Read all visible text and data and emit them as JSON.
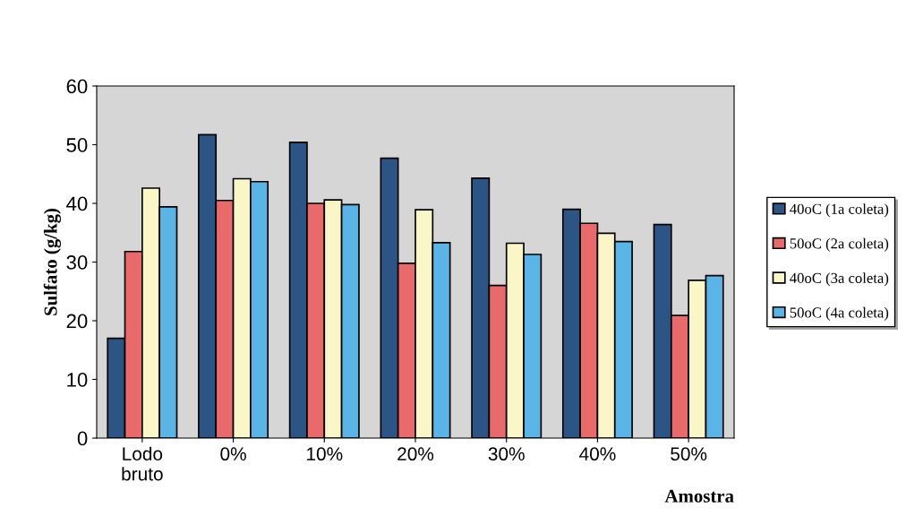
{
  "chart_data": {
    "type": "bar",
    "ylabel": "Sulfato (g/kg)",
    "xlabel": "Amostra",
    "categories": [
      "Lodo\nbruto",
      "0%",
      "10%",
      "20%",
      "30%",
      "40%",
      "50%"
    ],
    "series": [
      {
        "name": "40oC (1a coleta)",
        "color": "#2c5485",
        "values": [
          17,
          51.7,
          50.4,
          47.7,
          44.3,
          39.0,
          36.4
        ]
      },
      {
        "name": "50oC (2a coleta)",
        "color": "#e86a6a",
        "values": [
          31.8,
          40.5,
          40.0,
          29.8,
          26.0,
          36.6,
          20.9
        ]
      },
      {
        "name": "40oC (3a coleta)",
        "color": "#fbf6c8",
        "values": [
          42.6,
          44.2,
          40.6,
          38.9,
          33.2,
          34.9,
          26.9
        ]
      },
      {
        "name": "50oC (4a coleta)",
        "color": "#5ab4e6",
        "values": [
          39.4,
          43.7,
          39.8,
          33.3,
          31.3,
          33.5,
          27.7
        ]
      }
    ],
    "ylim": [
      0,
      60
    ],
    "yticks": [
      0,
      10,
      20,
      30,
      40,
      50,
      60
    ],
    "grid": false,
    "legend": "right"
  }
}
